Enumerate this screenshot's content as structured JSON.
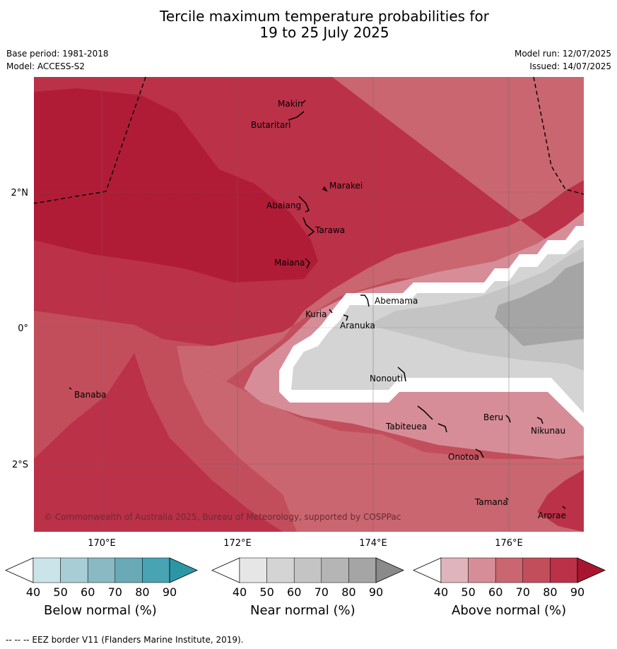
{
  "title_line1": "Tercile maximum temperature probabilities for",
  "title_line2": "19 to 25 July 2025",
  "base_period": "Base period: 1981-2018",
  "model": "Model: ACCESS-S2",
  "model_run": "Model run: 12/07/2025",
  "issued": "Issued: 14/07/2025",
  "lat_labels": [
    "2°N",
    "0°",
    "2°S"
  ],
  "lon_labels": [
    "170°E",
    "172°E",
    "174°E",
    "176°E"
  ],
  "places": [
    {
      "name": "Makin"
    },
    {
      "name": "Butaritari"
    },
    {
      "name": "Marakei"
    },
    {
      "name": "Abaiang"
    },
    {
      "name": "Tarawa"
    },
    {
      "name": "Maiana"
    },
    {
      "name": "Abemama"
    },
    {
      "name": "Kuria"
    },
    {
      "name": "Aranuka"
    },
    {
      "name": "Nonouti"
    },
    {
      "name": "Banaba"
    },
    {
      "name": "Tabiteuea"
    },
    {
      "name": "Beru"
    },
    {
      "name": "Nikunau"
    },
    {
      "name": "Onotoa"
    },
    {
      "name": "Tamana"
    },
    {
      "name": "Arorae"
    }
  ],
  "copyright": "© Commonwealth of Australia 2025, Bureau of Meteorology, supported by COSPPac",
  "colorbars": [
    {
      "label": "Below normal (%)",
      "ticks": [
        "40",
        "50",
        "60",
        "70",
        "80",
        "90"
      ],
      "colors": [
        "#cbe4ea",
        "#a8cdd4",
        "#89b9c3",
        "#6aa9b6",
        "#48a3b2",
        "#2b97a6"
      ]
    },
    {
      "label": "Near normal (%)",
      "ticks": [
        "40",
        "50",
        "60",
        "70",
        "80",
        "90"
      ],
      "colors": [
        "#e6e6e6",
        "#d4d4d4",
        "#c4c4c4",
        "#b5b5b5",
        "#a5a5a5",
        "#8a8a8a"
      ]
    },
    {
      "label": "Above normal (%)",
      "ticks": [
        "40",
        "50",
        "60",
        "70",
        "80",
        "90"
      ],
      "colors": [
        "#e0b4bb",
        "#d68d97",
        "#c9666f",
        "#c24e5c",
        "#bb3148",
        "#a8152f"
      ]
    }
  ],
  "footer": "--  --  -- EEZ border V11 (Flanders Marine Institute, 2019).",
  "colors": {
    "above_90": "#b01c36",
    "above_80": "#bb3148",
    "above_70": "#c24e5c",
    "above_60": "#c9666f",
    "above_50": "#d68d97",
    "near_50": "#d4d4d4",
    "near_60": "#c4c4c4",
    "near_70": "#a5a5a5"
  }
}
